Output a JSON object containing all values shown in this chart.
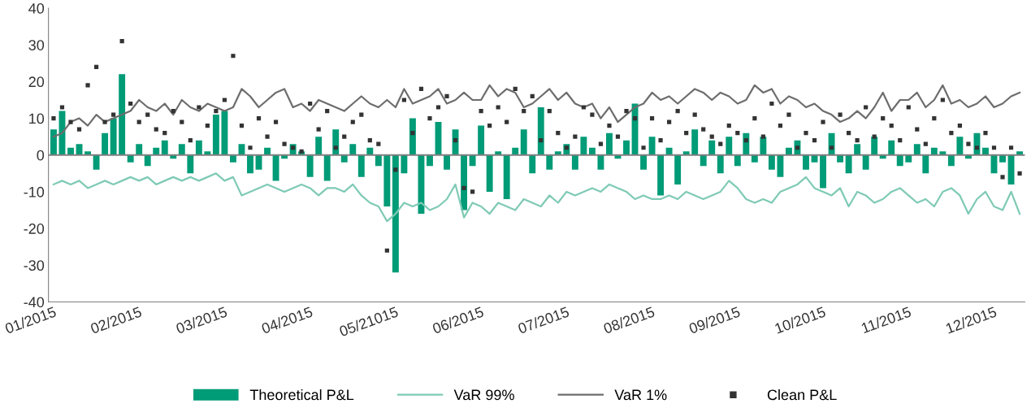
{
  "chart_data": {
    "type": "bar",
    "categories": [
      "01/2015",
      null,
      null,
      null,
      null,
      null,
      null,
      null,
      null,
      null,
      "02/2015",
      null,
      null,
      null,
      null,
      null,
      null,
      null,
      null,
      null,
      "03/2015",
      null,
      null,
      null,
      null,
      null,
      null,
      null,
      null,
      null,
      "04/2015",
      null,
      null,
      null,
      null,
      null,
      null,
      null,
      null,
      null,
      "05/21015",
      null,
      null,
      null,
      null,
      null,
      null,
      null,
      null,
      null,
      "06/2015",
      null,
      null,
      null,
      null,
      null,
      null,
      null,
      null,
      null,
      "07/2015",
      null,
      null,
      null,
      null,
      null,
      null,
      null,
      null,
      null,
      "08/2015",
      null,
      null,
      null,
      null,
      null,
      null,
      null,
      null,
      null,
      "09/2015",
      null,
      null,
      null,
      null,
      null,
      null,
      null,
      null,
      null,
      "10/2015",
      null,
      null,
      null,
      null,
      null,
      null,
      null,
      null,
      null,
      "11/2015",
      null,
      null,
      null,
      null,
      null,
      null,
      null,
      null,
      null,
      "12/2015",
      null,
      null,
      null
    ],
    "ylim": [
      -40,
      40
    ],
    "yticks": [
      -40,
      -30,
      -20,
      -10,
      0,
      10,
      20,
      30,
      40
    ],
    "legend": "bottom",
    "ref_lines": [
      {
        "axis": "y",
        "value": 0,
        "color": "#7f7f7f"
      }
    ],
    "series": [
      {
        "name": "Theoretical P&L",
        "color": "#009b77",
        "values": [
          7,
          12,
          2,
          3,
          1,
          -4,
          6,
          10,
          22,
          -2,
          3,
          -3,
          2,
          4,
          -1,
          3,
          -5,
          4,
          1,
          11,
          12,
          -2,
          3,
          -5,
          -4,
          2,
          -7,
          -1,
          3,
          1,
          -6,
          5,
          -7,
          7,
          -2,
          3,
          -6,
          2,
          -3,
          -14,
          -32,
          -5,
          10,
          -16,
          -3,
          9,
          -4,
          7,
          -15,
          -3,
          8,
          -10,
          1,
          -12,
          2,
          7,
          -5,
          13,
          -4,
          1,
          3,
          -4,
          5,
          2,
          -4,
          6,
          -1,
          4,
          14,
          -4,
          5,
          -11,
          2,
          -8,
          1,
          7,
          -3,
          4,
          -5,
          5,
          -3,
          6,
          -2,
          5,
          -4,
          -6,
          2,
          4,
          -4,
          -2,
          -9,
          6,
          -2,
          -5,
          3,
          -4,
          5,
          -1,
          4,
          -3,
          -2,
          3,
          -5,
          2,
          1,
          -3,
          5,
          -1,
          6,
          2,
          -5,
          -2,
          -8,
          1
        ]
      },
      {
        "name": "VaR 99%",
        "type": "line",
        "color": "#7fcab5",
        "values": [
          -8,
          -7,
          -8,
          -7,
          -9,
          -8,
          -7,
          -8,
          -7,
          -6,
          -7,
          -6,
          -8,
          -7,
          -6,
          -7,
          -6,
          -7,
          -6,
          -5,
          -7,
          -6,
          -11,
          -10,
          -9,
          -8,
          -9,
          -10,
          -9,
          -8,
          -9,
          -11,
          -9,
          -9,
          -10,
          -8,
          -11,
          -13,
          -14,
          -18,
          -16,
          -13,
          -14,
          -13,
          -15,
          -14,
          -12,
          -8,
          -17,
          -13,
          -14,
          -16,
          -13,
          -14,
          -15,
          -12,
          -13,
          -14,
          -11,
          -13,
          -10,
          -11,
          -10,
          -9,
          -10,
          -8,
          -9,
          -10,
          -12,
          -11,
          -12,
          -12,
          -11,
          -12,
          -10,
          -11,
          -12,
          -11,
          -10,
          -7,
          -9,
          -12,
          -13,
          -12,
          -13,
          -10,
          -9,
          -8,
          -6,
          -9,
          -10,
          -11,
          -9,
          -14,
          -10,
          -11,
          -13,
          -12,
          -10,
          -9,
          -11,
          -13,
          -12,
          -14,
          -10,
          -9,
          -11,
          -16,
          -12,
          -10,
          -14,
          -15,
          -10,
          -16
        ]
      },
      {
        "name": "VaR 1%",
        "type": "line",
        "color": "#6d6d6d",
        "values": [
          5,
          6,
          9,
          10,
          8,
          11,
          9,
          10,
          11,
          12,
          15,
          13,
          12,
          14,
          11,
          15,
          13,
          12,
          14,
          13,
          12,
          13,
          18,
          16,
          13,
          15,
          17,
          18,
          13,
          14,
          12,
          15,
          14,
          13,
          12,
          14,
          16,
          14,
          13,
          15,
          13,
          18,
          14,
          15,
          16,
          18,
          14,
          15,
          17,
          15,
          15,
          19,
          16,
          18,
          17,
          13,
          14,
          16,
          18,
          15,
          17,
          14,
          13,
          14,
          10,
          13,
          9,
          11,
          13,
          14,
          17,
          15,
          16,
          14,
          16,
          18,
          17,
          15,
          17,
          16,
          14,
          15,
          19,
          17,
          18,
          14,
          16,
          15,
          13,
          14,
          12,
          11,
          9,
          10,
          12,
          10,
          13,
          17,
          12,
          15,
          15,
          17,
          13,
          15,
          19,
          14,
          15,
          13,
          14,
          16,
          13,
          14,
          16,
          17
        ]
      },
      {
        "name": "Clean P&L",
        "type": "scatter",
        "color": "#333333",
        "values": [
          10,
          13,
          9,
          7,
          19,
          24,
          9,
          11,
          31,
          14,
          9,
          11,
          7,
          6,
          12,
          9,
          4,
          13,
          8,
          12,
          15,
          27,
          8,
          2,
          10,
          5,
          9,
          3,
          2,
          1,
          14,
          7,
          12,
          2,
          5,
          9,
          11,
          4,
          3,
          -26,
          -4,
          15,
          6,
          18,
          10,
          13,
          16,
          4,
          -9,
          -10,
          12,
          8,
          13,
          9,
          18,
          12,
          16,
          4,
          12,
          6,
          2,
          5,
          13,
          11,
          3,
          8,
          5,
          12,
          10,
          2,
          10,
          4,
          9,
          12,
          6,
          11,
          7,
          5,
          3,
          8,
          6,
          4,
          10,
          5,
          14,
          8,
          11,
          2,
          6,
          4,
          9,
          2,
          11,
          6,
          4,
          13,
          5,
          10,
          8,
          4,
          13,
          7,
          3,
          10,
          15,
          6,
          8,
          3,
          2,
          6,
          2,
          -6,
          2,
          -5
        ]
      }
    ]
  }
}
